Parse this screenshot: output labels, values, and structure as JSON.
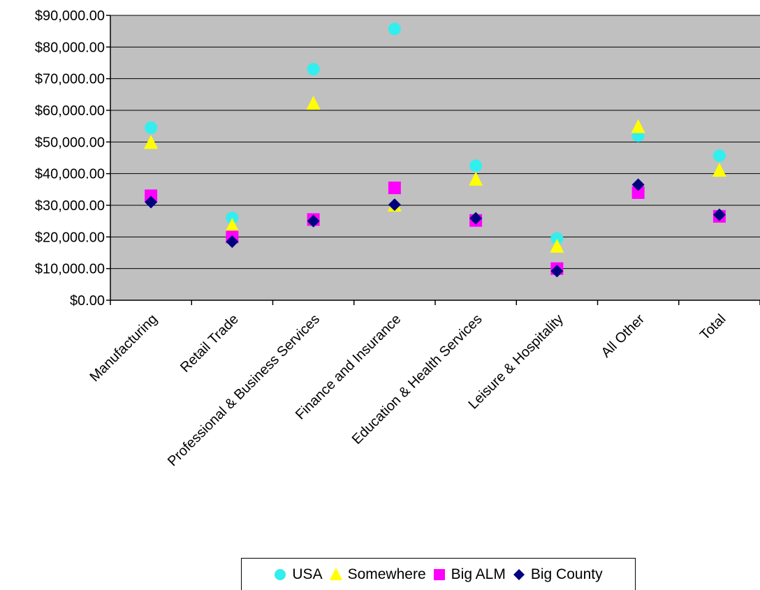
{
  "chart_data": {
    "type": "scatter",
    "title": "",
    "xlabel": "",
    "ylabel": "",
    "ylim": [
      0,
      90000
    ],
    "y_ticks": [
      "$0.00",
      "$10,000.00",
      "$20,000.00",
      "$30,000.00",
      "$40,000.00",
      "$50,000.00",
      "$60,000.00",
      "$70,000.00",
      "$80,000.00",
      "$90,000.00"
    ],
    "grid": true,
    "legend": "bottom",
    "plot_background": "#C0C0C0",
    "categories": [
      "Manufacturing",
      "Retail Trade",
      "Professional & Business Services",
      "Finance and Insurance",
      "Education & Health Services",
      "Leisure & Hospitality",
      "All Other",
      "Total"
    ],
    "series": [
      {
        "name": "USA",
        "marker": "circle",
        "color": "#33EEEE",
        "values": [
          54500,
          26000,
          73000,
          85700,
          42500,
          19500,
          52000,
          45700
        ]
      },
      {
        "name": "Somewhere",
        "marker": "triangle",
        "color": "#FFFF00",
        "values": [
          49800,
          23600,
          62200,
          30000,
          38200,
          17000,
          54800,
          41000
        ]
      },
      {
        "name": "Big ALM",
        "marker": "square",
        "color": "#FF00FF",
        "values": [
          33000,
          20000,
          25500,
          35500,
          25200,
          10000,
          34000,
          26500
        ]
      },
      {
        "name": "Big County",
        "marker": "diamond",
        "color": "#000080",
        "values": [
          31000,
          18500,
          25000,
          30200,
          25900,
          9200,
          36500,
          27000
        ]
      }
    ]
  }
}
